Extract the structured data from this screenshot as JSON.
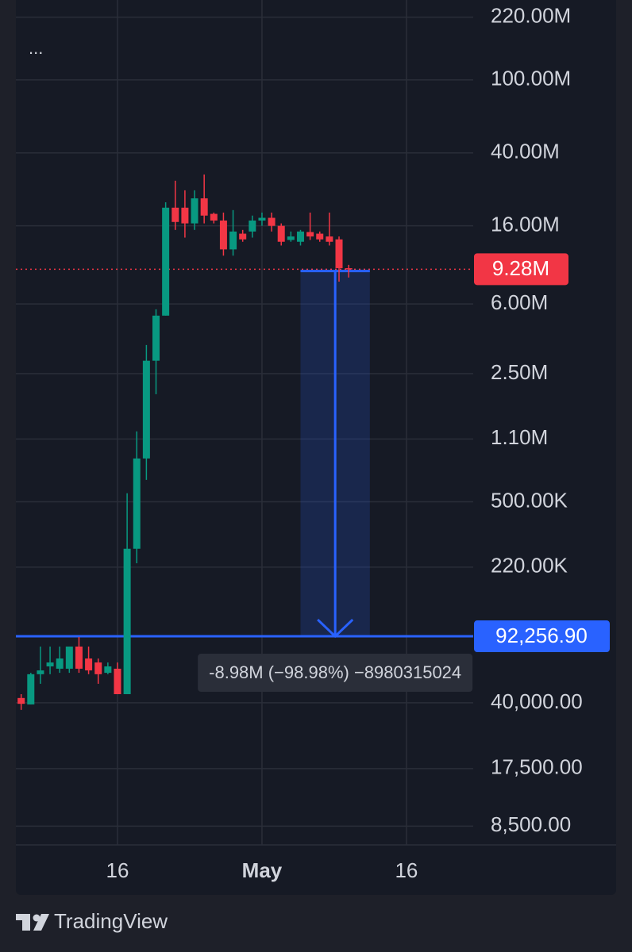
{
  "menu": "...",
  "brand": "TradingView",
  "chart_data": {
    "type": "candlestick",
    "log_scale": true,
    "grid": true,
    "up_color": "#089981",
    "down_color": "#f23645",
    "x": [
      -10,
      -9,
      -8,
      -7,
      -6,
      -5,
      -4,
      -3,
      -2,
      -1,
      0,
      1,
      2,
      3,
      4,
      5,
      6,
      7,
      8,
      9,
      10,
      11,
      12,
      13,
      14,
      15,
      16,
      17,
      18,
      19,
      20,
      21,
      22,
      23,
      24
    ],
    "open": [
      42500,
      39200,
      57300,
      63200,
      61400,
      61400,
      81100,
      69800,
      66400,
      58300,
      61400,
      44600,
      277000,
      861000,
      2940000,
      5180000,
      20100000,
      20100000,
      16500000,
      22600000,
      18600000,
      17100000,
      11900000,
      14500000,
      14900000,
      17100000,
      17700000,
      16000000,
      13400000,
      13100000,
      14800000,
      14500000,
      14000000,
      13500000,
      9400000
    ],
    "high": [
      44600,
      58300,
      81100,
      81100,
      81100,
      81100,
      91400,
      81100,
      69800,
      66400,
      66400,
      556000,
      1210000,
      3580000,
      5610000,
      21500000,
      28200000,
      25000000,
      25000000,
      30500000,
      18900000,
      18900000,
      19500000,
      15200000,
      18200000,
      18900000,
      18900000,
      16500000,
      14900000,
      15200000,
      18900000,
      14900000,
      18900000,
      14000000,
      9800000
    ],
    "low": [
      36600,
      39200,
      50800,
      57300,
      58300,
      58300,
      58300,
      57300,
      50800,
      57300,
      44600,
      44600,
      231000,
      658000,
      1930000,
      5180000,
      15200000,
      13800000,
      15200000,
      16500000,
      16500000,
      11000000,
      11000000,
      13100000,
      13800000,
      16000000,
      14900000,
      12500000,
      13100000,
      12500000,
      13400000,
      13100000,
      12500000,
      7940000,
      8360000
    ],
    "close": [
      39500,
      57300,
      60100,
      66400,
      69800,
      81100,
      61400,
      60100,
      57300,
      63200,
      44600,
      277000,
      861000,
      2940000,
      5180000,
      20100000,
      16800000,
      16500000,
      22600000,
      18200000,
      17100000,
      11900000,
      14900000,
      13500000,
      17100000,
      17700000,
      16000000,
      13100000,
      14000000,
      14900000,
      14000000,
      13500000,
      13100000,
      9400000,
      9280000
    ],
    "xlim": [
      -10.55,
      36.93
    ],
    "xticks": [
      {
        "value": 0,
        "label": "16"
      },
      {
        "value": 15,
        "label": "May"
      },
      {
        "value": 30,
        "label": "16"
      }
    ],
    "ylim": [
      6714,
      273000000
    ],
    "yticks": [
      {
        "value": 220000000,
        "label": "220.00M"
      },
      {
        "value": 100000000,
        "label": "100.00M"
      },
      {
        "value": 40000000,
        "label": "40.00M"
      },
      {
        "value": 16000000,
        "label": "16.00M"
      },
      {
        "value": 6000000,
        "label": "6.00M"
      },
      {
        "value": 2500000,
        "label": "2.50M"
      },
      {
        "value": 1100000,
        "label": "1.10M"
      },
      {
        "value": 500000,
        "label": "500.00K"
      },
      {
        "value": 220000,
        "label": "220.00K"
      },
      {
        "value": 40000,
        "label": "40,000.00"
      },
      {
        "value": 17500,
        "label": "17,500.00"
      },
      {
        "value": 8500,
        "label": "8,500.00"
      }
    ],
    "price_line": {
      "value": 9280000,
      "label": "9.28M",
      "color": "#f23645"
    },
    "measure": {
      "from": 9072572,
      "to": 92256.9,
      "label": "92,256.90",
      "x": [
        19,
        26.2
      ],
      "color": "#2962ff",
      "text": "-8.98M (−98.98%) −8980315024"
    }
  }
}
